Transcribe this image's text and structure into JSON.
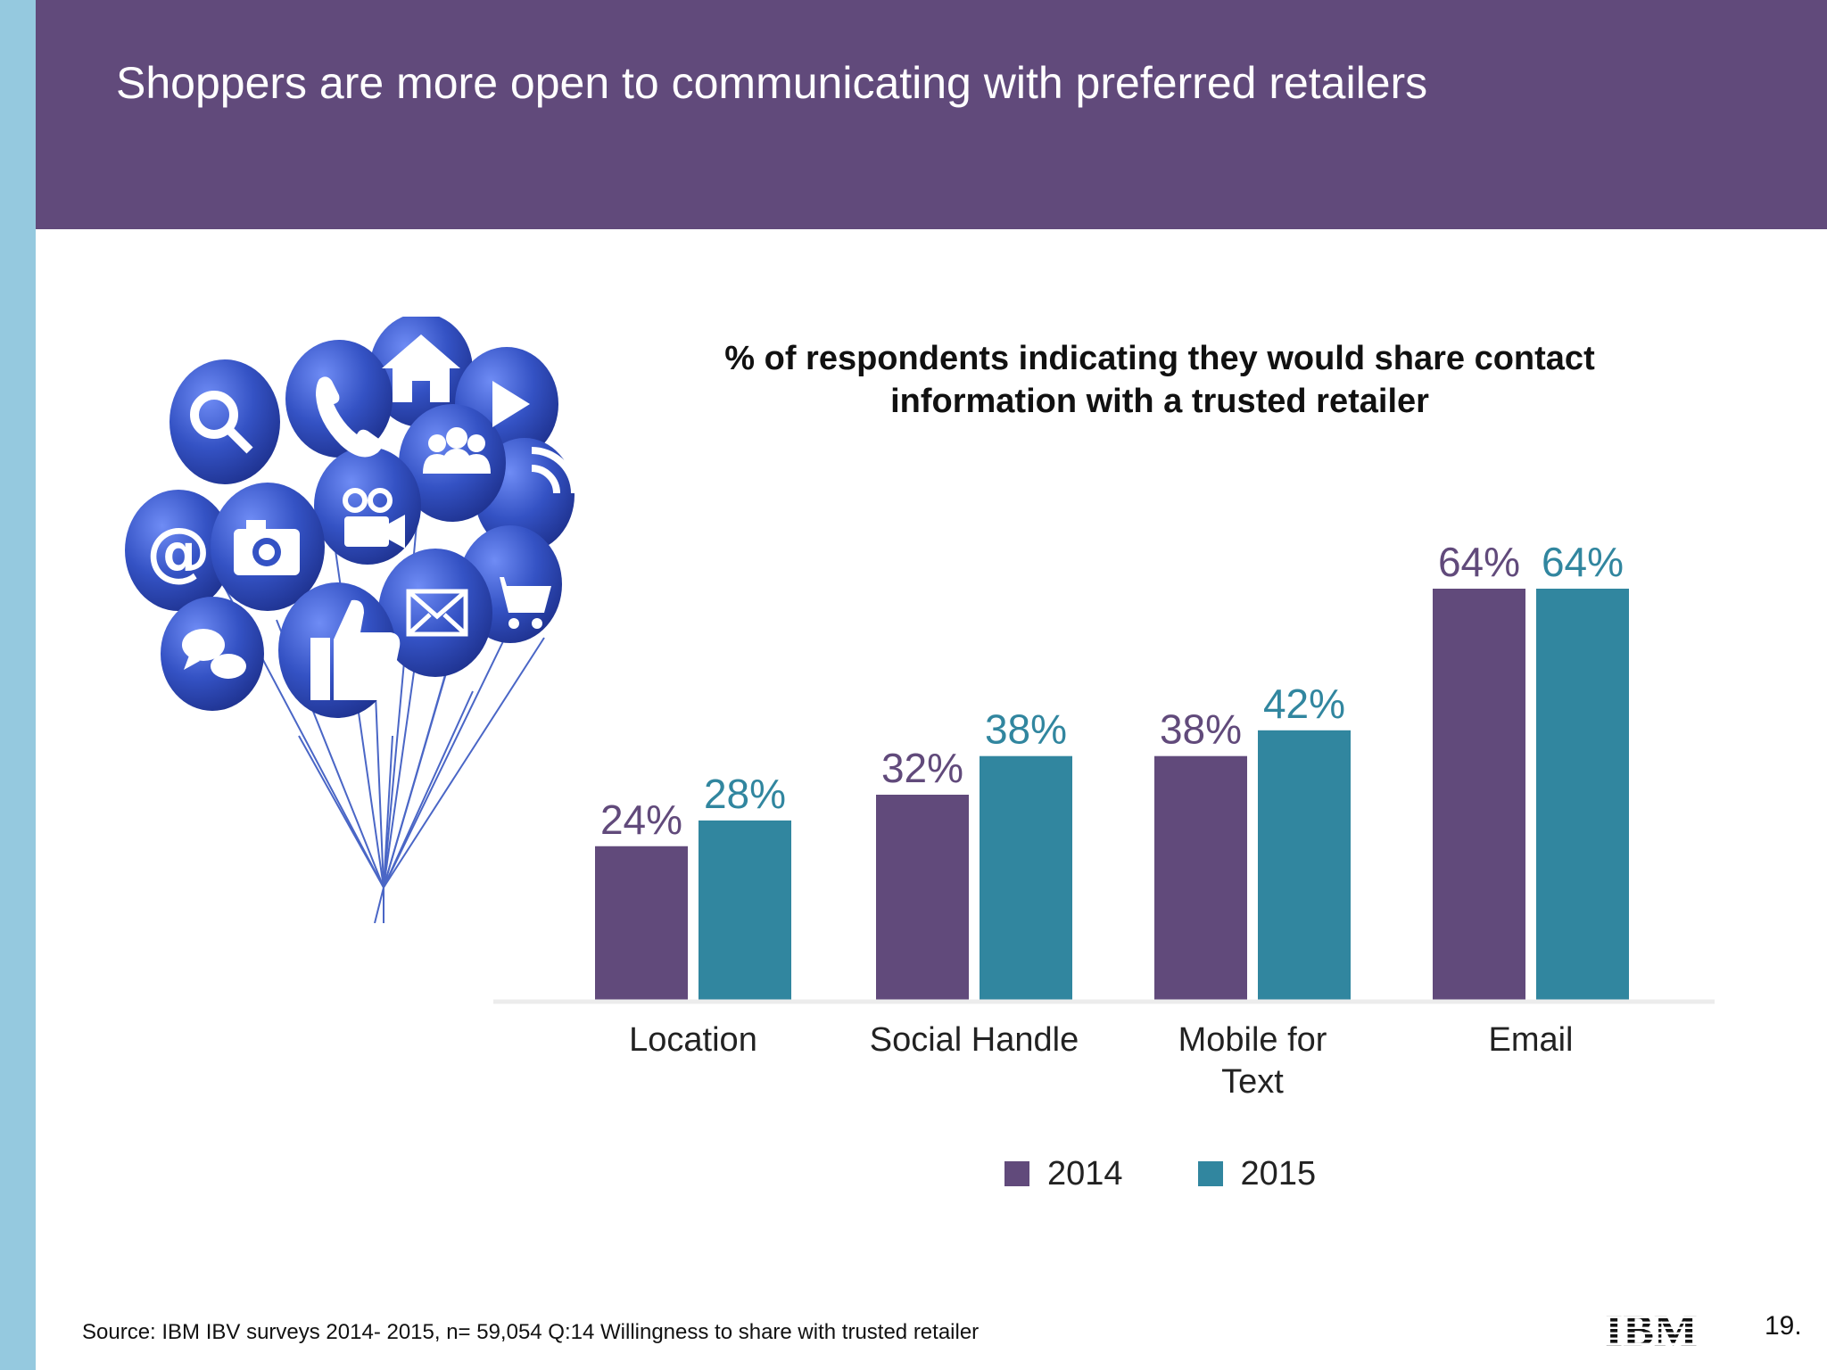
{
  "slide": {
    "title": "Shoppers are more open to communicating with preferred retailers",
    "source": "Source:  IBM IBV surveys 2014- 2015, n=  59,054 Q:14  Willingness to share with trusted retailer",
    "page_number": "19.",
    "logo": "IBM"
  },
  "colors": {
    "header_bg": "#614a7b",
    "side_strip": "#95c9df",
    "series_2014": "#614a7b",
    "series_2015": "#31869f",
    "balloon": "#3452c4"
  },
  "balloon_icons": [
    "at-icon",
    "search-icon",
    "phone-icon",
    "home-icon",
    "play-icon",
    "camera-icon",
    "video-camera-icon",
    "people-icon",
    "rss-icon",
    "chat-icon",
    "thumbs-up-icon",
    "envelope-icon",
    "cart-icon"
  ],
  "chart_data": {
    "type": "bar",
    "title": "% of respondents indicating they would share contact information with a trusted retailer",
    "categories": [
      "Location",
      "Social Handle",
      "Mobile for Text",
      "Email"
    ],
    "series": [
      {
        "name": "2014",
        "values": [
          24,
          32,
          38,
          64
        ],
        "labels": [
          "24%",
          "32%",
          "38%",
          "64%"
        ]
      },
      {
        "name": "2015",
        "values": [
          28,
          38,
          42,
          64
        ],
        "labels": [
          "28%",
          "38%",
          "42%",
          "64%"
        ]
      }
    ],
    "ylim": [
      0,
      64
    ],
    "grid": false,
    "legend": "bottom"
  }
}
